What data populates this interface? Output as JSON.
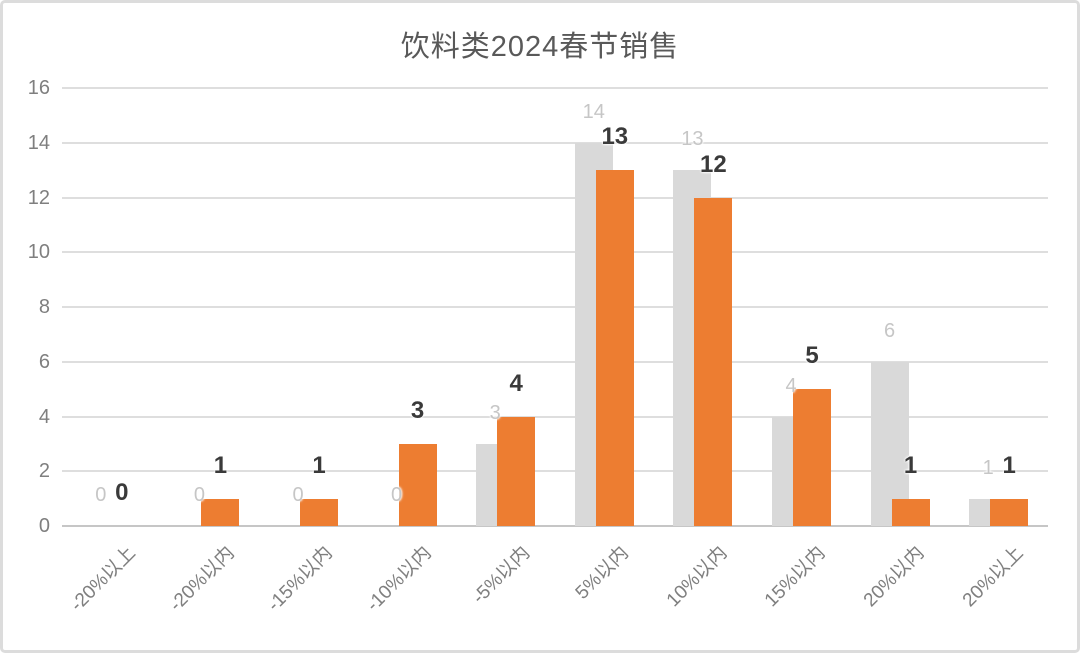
{
  "chart_data": {
    "type": "bar",
    "title": "饮料类2024春节销售",
    "categories": [
      "-20%以上",
      "-20%以内",
      "-15%以内",
      "-10%以内",
      "-5%以内",
      "5%以内",
      "10%以内",
      "15%以内",
      "20%以内",
      "20%以上"
    ],
    "series": [
      {
        "name": "gray-series",
        "color": "#d9d9d9",
        "label_color": "#c6c6c6",
        "label_bold": false,
        "values": [
          0,
          0,
          0,
          0,
          3,
          14,
          13,
          4,
          6,
          1
        ]
      },
      {
        "name": "orange-series",
        "color": "#ed7d31",
        "label_color": "#3a3a3a",
        "label_bold": true,
        "values": [
          0,
          1,
          1,
          3,
          4,
          13,
          12,
          5,
          1,
          1
        ]
      }
    ],
    "ylim": [
      0,
      16
    ],
    "yticks": [
      0,
      2,
      4,
      6,
      8,
      10,
      12,
      14,
      16
    ],
    "grid": true,
    "legend_position": "none",
    "data_labels": "outside-end",
    "bar_style": "overlapped",
    "xlabel": "",
    "ylabel": ""
  },
  "style": {
    "title_color": "#595959",
    "axis_label_color": "#7f7f7f",
    "gridline_color": "#dedede",
    "baseline_color": "#c6c6c6",
    "frame_border_color": "#dcdcdc",
    "background": "#ffffff"
  }
}
